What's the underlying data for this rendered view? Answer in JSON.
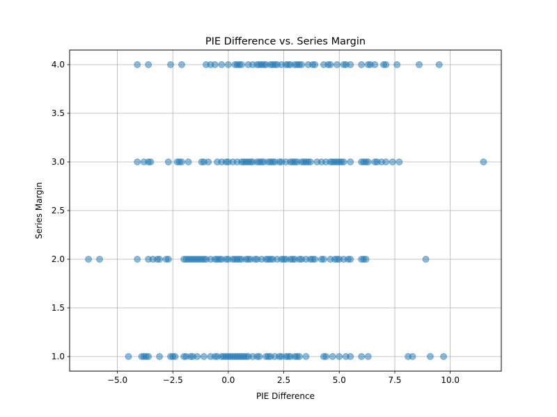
{
  "chart_data": {
    "type": "scatter",
    "title": "PIE Difference vs. Series Margin",
    "xlabel": "PIE Difference",
    "ylabel": "Series Margin",
    "xlim": [
      -7.15,
      12.3
    ],
    "ylim": [
      0.85,
      4.15
    ],
    "x_ticks": [
      -5.0,
      -2.5,
      0.0,
      2.5,
      5.0,
      7.5,
      10.0
    ],
    "x_tick_labels": [
      "−5.0",
      "−2.5",
      "0.0",
      "2.5",
      "5.0",
      "7.5",
      "10.0"
    ],
    "y_ticks": [
      1.0,
      1.5,
      2.0,
      2.5,
      3.0,
      3.5,
      4.0
    ],
    "y_tick_labels": [
      "1.0",
      "1.5",
      "2.0",
      "2.5",
      "3.0",
      "3.5",
      "4.0"
    ],
    "grid": true,
    "marker_color": "#1f77b4",
    "marker_alpha": 0.5,
    "points": [
      {
        "x": -4.1,
        "y": 4
      },
      {
        "x": -3.6,
        "y": 4
      },
      {
        "x": -2.6,
        "y": 4
      },
      {
        "x": -2.1,
        "y": 4
      },
      {
        "x": -1.0,
        "y": 4
      },
      {
        "x": -0.8,
        "y": 4
      },
      {
        "x": -0.6,
        "y": 4
      },
      {
        "x": -0.3,
        "y": 4
      },
      {
        "x": 0.0,
        "y": 4
      },
      {
        "x": 0.3,
        "y": 4
      },
      {
        "x": 0.4,
        "y": 4
      },
      {
        "x": 0.5,
        "y": 4
      },
      {
        "x": 0.6,
        "y": 4
      },
      {
        "x": 0.9,
        "y": 4
      },
      {
        "x": 1.1,
        "y": 4
      },
      {
        "x": 1.3,
        "y": 4
      },
      {
        "x": 1.4,
        "y": 4
      },
      {
        "x": 1.5,
        "y": 4
      },
      {
        "x": 1.6,
        "y": 4
      },
      {
        "x": 1.7,
        "y": 4
      },
      {
        "x": 1.9,
        "y": 4
      },
      {
        "x": 2.0,
        "y": 4
      },
      {
        "x": 2.1,
        "y": 4
      },
      {
        "x": 2.2,
        "y": 4
      },
      {
        "x": 2.4,
        "y": 4
      },
      {
        "x": 2.6,
        "y": 4
      },
      {
        "x": 2.7,
        "y": 4
      },
      {
        "x": 2.8,
        "y": 4
      },
      {
        "x": 3.0,
        "y": 4
      },
      {
        "x": 3.1,
        "y": 4
      },
      {
        "x": 3.2,
        "y": 4
      },
      {
        "x": 3.3,
        "y": 4
      },
      {
        "x": 3.6,
        "y": 4
      },
      {
        "x": 3.8,
        "y": 4
      },
      {
        "x": 3.9,
        "y": 4
      },
      {
        "x": 4.3,
        "y": 4
      },
      {
        "x": 4.5,
        "y": 4
      },
      {
        "x": 4.6,
        "y": 4
      },
      {
        "x": 4.9,
        "y": 4
      },
      {
        "x": 5.2,
        "y": 4
      },
      {
        "x": 5.3,
        "y": 4
      },
      {
        "x": 5.5,
        "y": 4
      },
      {
        "x": 6.0,
        "y": 4
      },
      {
        "x": 6.3,
        "y": 4
      },
      {
        "x": 6.4,
        "y": 4
      },
      {
        "x": 6.6,
        "y": 4
      },
      {
        "x": 7.0,
        "y": 4
      },
      {
        "x": 7.1,
        "y": 4
      },
      {
        "x": 7.6,
        "y": 4
      },
      {
        "x": 8.6,
        "y": 4
      },
      {
        "x": 9.5,
        "y": 4
      },
      {
        "x": -4.1,
        "y": 3
      },
      {
        "x": -3.8,
        "y": 3
      },
      {
        "x": -3.6,
        "y": 3
      },
      {
        "x": -3.5,
        "y": 3
      },
      {
        "x": -2.7,
        "y": 3
      },
      {
        "x": -2.3,
        "y": 3
      },
      {
        "x": -2.2,
        "y": 3
      },
      {
        "x": -2.1,
        "y": 3
      },
      {
        "x": -1.8,
        "y": 3
      },
      {
        "x": -1.2,
        "y": 3
      },
      {
        "x": -1.1,
        "y": 3
      },
      {
        "x": -0.9,
        "y": 3
      },
      {
        "x": -0.5,
        "y": 3
      },
      {
        "x": -0.3,
        "y": 3
      },
      {
        "x": -0.1,
        "y": 3
      },
      {
        "x": 0.0,
        "y": 3
      },
      {
        "x": 0.2,
        "y": 3
      },
      {
        "x": 0.4,
        "y": 3
      },
      {
        "x": 0.6,
        "y": 3
      },
      {
        "x": 0.7,
        "y": 3
      },
      {
        "x": 0.8,
        "y": 3
      },
      {
        "x": 0.9,
        "y": 3
      },
      {
        "x": 1.0,
        "y": 3
      },
      {
        "x": 1.1,
        "y": 3
      },
      {
        "x": 1.3,
        "y": 3
      },
      {
        "x": 1.4,
        "y": 3
      },
      {
        "x": 1.5,
        "y": 3
      },
      {
        "x": 1.6,
        "y": 3
      },
      {
        "x": 1.8,
        "y": 3
      },
      {
        "x": 1.9,
        "y": 3
      },
      {
        "x": 2.0,
        "y": 3
      },
      {
        "x": 2.1,
        "y": 3
      },
      {
        "x": 2.3,
        "y": 3
      },
      {
        "x": 2.4,
        "y": 3
      },
      {
        "x": 2.6,
        "y": 3
      },
      {
        "x": 2.8,
        "y": 3
      },
      {
        "x": 2.9,
        "y": 3
      },
      {
        "x": 3.0,
        "y": 3
      },
      {
        "x": 3.1,
        "y": 3
      },
      {
        "x": 3.3,
        "y": 3
      },
      {
        "x": 3.4,
        "y": 3
      },
      {
        "x": 3.5,
        "y": 3
      },
      {
        "x": 3.6,
        "y": 3
      },
      {
        "x": 3.7,
        "y": 3
      },
      {
        "x": 4.0,
        "y": 3
      },
      {
        "x": 4.2,
        "y": 3
      },
      {
        "x": 4.4,
        "y": 3
      },
      {
        "x": 4.6,
        "y": 3
      },
      {
        "x": 4.7,
        "y": 3
      },
      {
        "x": 4.8,
        "y": 3
      },
      {
        "x": 4.9,
        "y": 3
      },
      {
        "x": 5.0,
        "y": 3
      },
      {
        "x": 5.1,
        "y": 3
      },
      {
        "x": 5.2,
        "y": 3
      },
      {
        "x": 5.5,
        "y": 3
      },
      {
        "x": 6.0,
        "y": 3
      },
      {
        "x": 6.1,
        "y": 3
      },
      {
        "x": 6.2,
        "y": 3
      },
      {
        "x": 6.3,
        "y": 3
      },
      {
        "x": 6.6,
        "y": 3
      },
      {
        "x": 6.7,
        "y": 3
      },
      {
        "x": 6.9,
        "y": 3
      },
      {
        "x": 7.1,
        "y": 3
      },
      {
        "x": 7.4,
        "y": 3
      },
      {
        "x": 7.7,
        "y": 3
      },
      {
        "x": 11.5,
        "y": 3
      },
      {
        "x": -6.3,
        "y": 2
      },
      {
        "x": -5.8,
        "y": 2
      },
      {
        "x": -4.1,
        "y": 2
      },
      {
        "x": -3.6,
        "y": 2
      },
      {
        "x": -3.4,
        "y": 2
      },
      {
        "x": -3.2,
        "y": 2
      },
      {
        "x": -3.1,
        "y": 2
      },
      {
        "x": -2.8,
        "y": 2
      },
      {
        "x": -2.7,
        "y": 2
      },
      {
        "x": -2.0,
        "y": 2
      },
      {
        "x": -1.9,
        "y": 2
      },
      {
        "x": -1.8,
        "y": 2
      },
      {
        "x": -1.7,
        "y": 2
      },
      {
        "x": -1.6,
        "y": 2
      },
      {
        "x": -1.5,
        "y": 2
      },
      {
        "x": -1.4,
        "y": 2
      },
      {
        "x": -1.3,
        "y": 2
      },
      {
        "x": -1.2,
        "y": 2
      },
      {
        "x": -1.1,
        "y": 2
      },
      {
        "x": -1.0,
        "y": 2
      },
      {
        "x": -0.8,
        "y": 2
      },
      {
        "x": -0.6,
        "y": 2
      },
      {
        "x": -0.5,
        "y": 2
      },
      {
        "x": -0.4,
        "y": 2
      },
      {
        "x": -0.3,
        "y": 2
      },
      {
        "x": -0.1,
        "y": 2
      },
      {
        "x": 0.0,
        "y": 2
      },
      {
        "x": 0.2,
        "y": 2
      },
      {
        "x": 0.3,
        "y": 2
      },
      {
        "x": 0.4,
        "y": 2
      },
      {
        "x": 0.5,
        "y": 2
      },
      {
        "x": 0.6,
        "y": 2
      },
      {
        "x": 0.8,
        "y": 2
      },
      {
        "x": 0.9,
        "y": 2
      },
      {
        "x": 1.0,
        "y": 2
      },
      {
        "x": 1.2,
        "y": 2
      },
      {
        "x": 1.3,
        "y": 2
      },
      {
        "x": 1.5,
        "y": 2
      },
      {
        "x": 1.7,
        "y": 2
      },
      {
        "x": 1.8,
        "y": 2
      },
      {
        "x": 1.9,
        "y": 2
      },
      {
        "x": 2.0,
        "y": 2
      },
      {
        "x": 2.2,
        "y": 2
      },
      {
        "x": 2.4,
        "y": 2
      },
      {
        "x": 2.5,
        "y": 2
      },
      {
        "x": 2.6,
        "y": 2
      },
      {
        "x": 2.8,
        "y": 2
      },
      {
        "x": 2.9,
        "y": 2
      },
      {
        "x": 3.0,
        "y": 2
      },
      {
        "x": 3.2,
        "y": 2
      },
      {
        "x": 3.3,
        "y": 2
      },
      {
        "x": 3.5,
        "y": 2
      },
      {
        "x": 3.7,
        "y": 2
      },
      {
        "x": 3.8,
        "y": 2
      },
      {
        "x": 3.9,
        "y": 2
      },
      {
        "x": 4.2,
        "y": 2
      },
      {
        "x": 4.3,
        "y": 2
      },
      {
        "x": 4.6,
        "y": 2
      },
      {
        "x": 4.8,
        "y": 2
      },
      {
        "x": 4.9,
        "y": 2
      },
      {
        "x": 5.0,
        "y": 2
      },
      {
        "x": 5.2,
        "y": 2
      },
      {
        "x": 5.4,
        "y": 2
      },
      {
        "x": 5.5,
        "y": 2
      },
      {
        "x": 6.0,
        "y": 2
      },
      {
        "x": 6.1,
        "y": 2
      },
      {
        "x": 6.2,
        "y": 2
      },
      {
        "x": 8.9,
        "y": 2
      },
      {
        "x": -4.5,
        "y": 1
      },
      {
        "x": -3.9,
        "y": 1
      },
      {
        "x": -3.8,
        "y": 1
      },
      {
        "x": -3.7,
        "y": 1
      },
      {
        "x": -3.6,
        "y": 1
      },
      {
        "x": -3.1,
        "y": 1
      },
      {
        "x": -2.6,
        "y": 1
      },
      {
        "x": -2.5,
        "y": 1
      },
      {
        "x": -2.4,
        "y": 1
      },
      {
        "x": -2.0,
        "y": 1
      },
      {
        "x": -1.9,
        "y": 1
      },
      {
        "x": -1.7,
        "y": 1
      },
      {
        "x": -1.6,
        "y": 1
      },
      {
        "x": -1.4,
        "y": 1
      },
      {
        "x": -1.1,
        "y": 1
      },
      {
        "x": -0.8,
        "y": 1
      },
      {
        "x": -0.6,
        "y": 1
      },
      {
        "x": -0.5,
        "y": 1
      },
      {
        "x": -0.3,
        "y": 1
      },
      {
        "x": -0.2,
        "y": 1
      },
      {
        "x": -0.1,
        "y": 1
      },
      {
        "x": 0.0,
        "y": 1
      },
      {
        "x": 0.1,
        "y": 1
      },
      {
        "x": 0.2,
        "y": 1
      },
      {
        "x": 0.3,
        "y": 1
      },
      {
        "x": 0.4,
        "y": 1
      },
      {
        "x": 0.5,
        "y": 1
      },
      {
        "x": 0.6,
        "y": 1
      },
      {
        "x": 0.7,
        "y": 1
      },
      {
        "x": 0.8,
        "y": 1
      },
      {
        "x": 0.9,
        "y": 1
      },
      {
        "x": 1.1,
        "y": 1
      },
      {
        "x": 1.3,
        "y": 1
      },
      {
        "x": 1.4,
        "y": 1
      },
      {
        "x": 1.7,
        "y": 1
      },
      {
        "x": 1.8,
        "y": 1
      },
      {
        "x": 1.9,
        "y": 1
      },
      {
        "x": 2.1,
        "y": 1
      },
      {
        "x": 2.3,
        "y": 1
      },
      {
        "x": 2.4,
        "y": 1
      },
      {
        "x": 2.6,
        "y": 1
      },
      {
        "x": 2.7,
        "y": 1
      },
      {
        "x": 2.8,
        "y": 1
      },
      {
        "x": 3.0,
        "y": 1
      },
      {
        "x": 3.1,
        "y": 1
      },
      {
        "x": 3.2,
        "y": 1
      },
      {
        "x": 3.5,
        "y": 1
      },
      {
        "x": 4.3,
        "y": 1
      },
      {
        "x": 4.4,
        "y": 1
      },
      {
        "x": 4.7,
        "y": 1
      },
      {
        "x": 5.0,
        "y": 1
      },
      {
        "x": 5.3,
        "y": 1
      },
      {
        "x": 5.5,
        "y": 1
      },
      {
        "x": 6.0,
        "y": 1
      },
      {
        "x": 6.3,
        "y": 1
      },
      {
        "x": 8.1,
        "y": 1
      },
      {
        "x": 8.3,
        "y": 1
      },
      {
        "x": 9.1,
        "y": 1
      },
      {
        "x": 9.7,
        "y": 1
      }
    ]
  }
}
